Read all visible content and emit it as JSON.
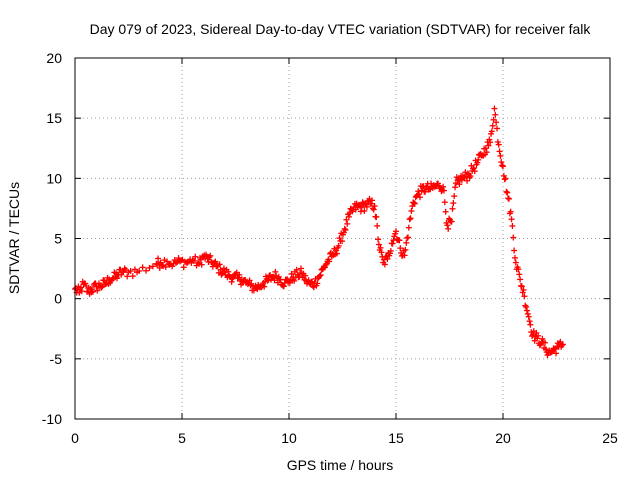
{
  "chart_data": {
    "type": "scatter",
    "title": "Day 079 of 2023, Sidereal Day-to-day VTEC variation (SDTVAR) for receiver falk",
    "xlabel": "GPS time / hours",
    "ylabel": "SDTVAR / TECUs",
    "xlim": [
      0,
      25
    ],
    "ylim": [
      -10,
      20
    ],
    "x_ticks": [
      0,
      5,
      10,
      15,
      20,
      25
    ],
    "y_ticks": [
      -10,
      -5,
      0,
      5,
      10,
      15,
      20
    ],
    "x_tick_labels": [
      "0",
      "5",
      "10",
      "15",
      "20",
      "25"
    ],
    "y_tick_labels": [
      "-10",
      "-5",
      "0",
      "5",
      "10",
      "15",
      "20"
    ],
    "grid": true,
    "marker": "+",
    "marker_color": "#ff0000",
    "series": [
      {
        "name": "SDTVAR",
        "x": [
          0.0,
          0.2,
          0.4,
          0.6,
          0.8,
          1.0,
          1.2,
          1.4,
          1.6,
          1.8,
          2.0,
          2.2,
          2.5,
          3.0,
          3.8,
          4.0,
          4.3,
          4.6,
          4.9,
          5.2,
          5.5,
          5.8,
          6.0,
          6.2,
          6.4,
          6.6,
          6.8,
          7.0,
          7.2,
          7.4,
          7.6,
          7.8,
          8.0,
          8.2,
          8.4,
          8.6,
          8.8,
          9.0,
          9.2,
          9.4,
          9.6,
          9.8,
          10.0,
          10.2,
          10.4,
          10.6,
          10.8,
          11.0,
          11.2,
          11.4,
          11.6,
          11.8,
          12.0,
          12.2,
          12.4,
          12.6,
          12.8,
          13.0,
          13.2,
          13.4,
          13.6,
          13.8,
          14.0,
          14.2,
          14.4,
          14.6,
          14.8,
          15.0,
          15.2,
          15.4,
          15.6,
          15.8,
          16.0,
          16.2,
          16.4,
          16.6,
          16.8,
          17.0,
          17.2,
          17.4,
          17.6,
          17.8,
          18.0,
          18.2,
          18.4,
          18.6,
          18.8,
          19.0,
          19.2,
          19.4,
          19.6,
          19.8,
          20.0,
          20.2,
          20.4,
          20.6,
          20.8,
          21.0,
          21.2,
          21.4,
          21.6,
          21.8,
          22.0,
          22.2,
          22.4,
          22.6,
          22.8
        ],
        "y": [
          0.8,
          0.5,
          1.2,
          0.6,
          0.8,
          1.0,
          1.1,
          1.2,
          1.6,
          1.7,
          2.0,
          2.2,
          2.2,
          2.3,
          2.9,
          3.0,
          3.1,
          2.9,
          3.1,
          3.0,
          3.2,
          2.9,
          3.5,
          3.3,
          3.0,
          2.7,
          2.4,
          2.2,
          1.9,
          1.8,
          1.7,
          1.6,
          1.3,
          1.1,
          0.9,
          1.0,
          1.3,
          1.5,
          1.8,
          1.9,
          1.6,
          1.3,
          1.5,
          1.8,
          2.0,
          2.1,
          1.5,
          1.2,
          1.3,
          1.8,
          2.5,
          3.1,
          3.5,
          4.0,
          4.8,
          5.8,
          6.8,
          7.4,
          7.7,
          7.6,
          7.8,
          7.9,
          7.7,
          4.5,
          3.0,
          3.3,
          4.6,
          5.6,
          4.2,
          3.6,
          5.9,
          8.0,
          8.6,
          9.0,
          9.2,
          9.1,
          9.3,
          9.4,
          9.3,
          6.1,
          6.4,
          9.6,
          9.9,
          10.1,
          10.3,
          10.8,
          11.3,
          11.9,
          12.5,
          13.0,
          15.8,
          12.8,
          11.0,
          8.8,
          6.6,
          3.0,
          1.6,
          0.2,
          -1.5,
          -3.0,
          -3.3,
          -3.6,
          -4.2,
          -4.5,
          -4.2,
          -4.0,
          -3.8
        ]
      }
    ]
  }
}
